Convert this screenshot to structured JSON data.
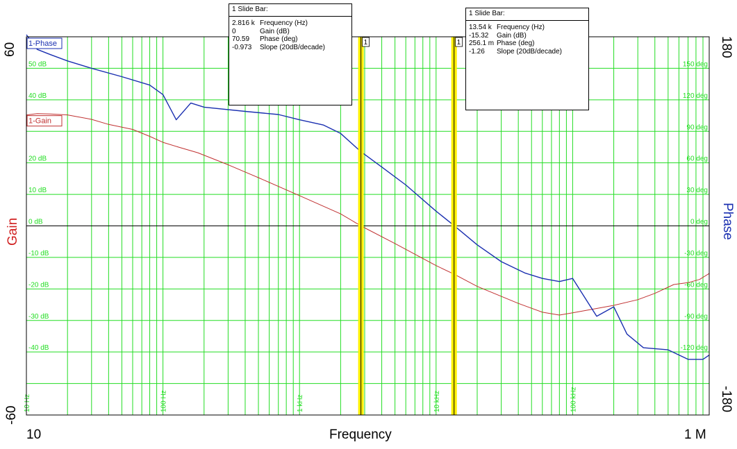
{
  "chart_data": {
    "type": "line",
    "x_scale": "log",
    "xlabel": "Frequency",
    "ylabel_left": "Gain",
    "ylabel_right": "Phase",
    "xlim": [
      10,
      1000000
    ],
    "ylim_left": [
      -60,
      60
    ],
    "ylim_right": [
      -180,
      180
    ],
    "x_range_labels": {
      "min": "10",
      "max": "1 M"
    },
    "y_left_range_labels": {
      "max": "60",
      "min": "-60"
    },
    "y_right_range_labels": {
      "max": "180",
      "min": "-180"
    },
    "gain_ticks": [
      {
        "value": 50,
        "label": "50 dB"
      },
      {
        "value": 40,
        "label": "40 dB"
      },
      {
        "value": 20,
        "label": "20 dB"
      },
      {
        "value": 10,
        "label": "10 dB"
      },
      {
        "value": 0,
        "label": "0 dB"
      },
      {
        "value": -10,
        "label": "-10 dB"
      },
      {
        "value": -20,
        "label": "-20 dB"
      },
      {
        "value": -30,
        "label": "-30 dB"
      },
      {
        "value": -40,
        "label": "-40 dB"
      }
    ],
    "phase_ticks": [
      {
        "value": 150,
        "label": "150 deg"
      },
      {
        "value": 120,
        "label": "120 deg"
      },
      {
        "value": 90,
        "label": "90 deg"
      },
      {
        "value": 60,
        "label": "60 deg"
      },
      {
        "value": 30,
        "label": "30 deg"
      },
      {
        "value": 0,
        "label": "0 deg"
      },
      {
        "value": -30,
        "label": "-30 deg"
      },
      {
        "value": -60,
        "label": "-60 deg"
      },
      {
        "value": -90,
        "label": "-90 deg"
      },
      {
        "value": -120,
        "label": "-120 deg"
      }
    ],
    "decade_ticks": [
      {
        "value": 10,
        "label": "10 Hz"
      },
      {
        "value": 100,
        "label": "100 Hz"
      },
      {
        "value": 1000,
        "label": "1 kHz"
      },
      {
        "value": 10000,
        "label": "10 kHz"
      },
      {
        "value": 100000,
        "label": "100 kHz"
      }
    ],
    "grid": true,
    "colors": {
      "gain": "#c03030",
      "phase": "#1a2fb0",
      "grid": "#22dd22",
      "cursor": "#ffee00",
      "zero": "#000000"
    },
    "series": [
      {
        "name": "1-Gain",
        "axis": "left",
        "points": [
          [
            10,
            35.2
          ],
          [
            12,
            35.6
          ],
          [
            15,
            35.5
          ],
          [
            20,
            35.2
          ],
          [
            30,
            33.8
          ],
          [
            40,
            32.2
          ],
          [
            60,
            30.6
          ],
          [
            80,
            28.4
          ],
          [
            100,
            26.5
          ],
          [
            130,
            25.0
          ],
          [
            180,
            23.2
          ],
          [
            300,
            19.4
          ],
          [
            500,
            15.3
          ],
          [
            1000,
            9.6
          ],
          [
            2000,
            3.8
          ],
          [
            2816,
            0
          ],
          [
            5000,
            -5.6
          ],
          [
            10000,
            -12.6
          ],
          [
            13540,
            -15.32
          ],
          [
            20000,
            -19.2
          ],
          [
            40000,
            -24.6
          ],
          [
            60000,
            -27.4
          ],
          [
            80000,
            -28.3
          ],
          [
            100000,
            -27.6
          ],
          [
            150000,
            -26.2
          ],
          [
            200000,
            -25.2
          ],
          [
            300000,
            -23.4
          ],
          [
            400000,
            -21.4
          ],
          [
            550000,
            -18.6
          ],
          [
            700000,
            -18.0
          ],
          [
            850000,
            -17.0
          ],
          [
            1000000,
            -15.1
          ]
        ]
      },
      {
        "name": "1-Phase",
        "axis": "right",
        "points": [
          [
            10,
            182
          ],
          [
            12,
            168
          ],
          [
            15,
            163
          ],
          [
            20,
            157
          ],
          [
            30,
            150
          ],
          [
            50,
            142
          ],
          [
            80,
            134
          ],
          [
            100,
            125
          ],
          [
            125,
            101
          ],
          [
            160,
            117
          ],
          [
            200,
            113
          ],
          [
            400,
            109
          ],
          [
            700,
            106
          ],
          [
            1000,
            101
          ],
          [
            1500,
            96
          ],
          [
            2000,
            88
          ],
          [
            2816,
            70.59
          ],
          [
            4000,
            56
          ],
          [
            6000,
            39
          ],
          [
            10000,
            14
          ],
          [
            13540,
            0.256
          ],
          [
            20000,
            -18
          ],
          [
            30000,
            -34
          ],
          [
            45000,
            -45
          ],
          [
            60000,
            -50
          ],
          [
            80000,
            -53
          ],
          [
            100000,
            -50
          ],
          [
            150000,
            -86
          ],
          [
            200000,
            -77
          ],
          [
            250000,
            -103
          ],
          [
            330000,
            -116
          ],
          [
            500000,
            -118
          ],
          [
            700000,
            -127
          ],
          [
            900000,
            -127
          ],
          [
            1000000,
            -123
          ]
        ]
      }
    ],
    "cursors": [
      {
        "freq": 2816,
        "label": "1"
      },
      {
        "freq": 13540,
        "label": "1"
      }
    ]
  },
  "slide_bars": [
    {
      "title": "1  Slide Bar:",
      "rows": [
        {
          "value": "2.816 k",
          "label": "Frequency (Hz)"
        },
        {
          "value": "0",
          "label": "Gain (dB)"
        },
        {
          "value": "70.59",
          "label": "Phase (deg)"
        },
        {
          "value": "-0.973",
          "label": "Slope (20dB/decade)"
        }
      ]
    },
    {
      "title": "1  Slide Bar:",
      "rows": [
        {
          "value": "13.54 k",
          "label": "Frequency (Hz)"
        },
        {
          "value": "-15.32",
          "label": "Gain (dB)"
        },
        {
          "value": "256.1 m",
          "label": "Phase (deg)"
        },
        {
          "value": "-1.26",
          "label": "Slope (20dB/decade)"
        }
      ]
    }
  ]
}
